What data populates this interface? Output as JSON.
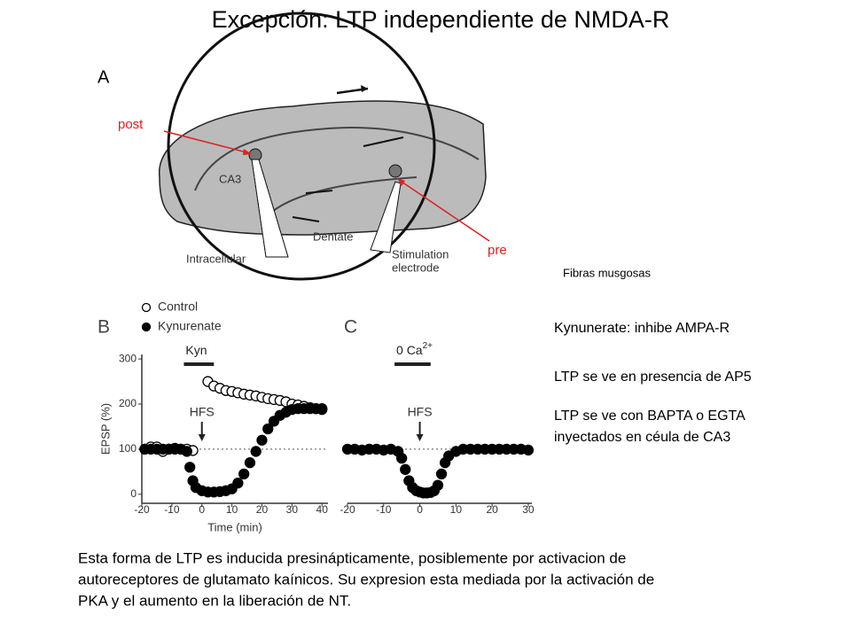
{
  "title": "Excepción: LTP independiente de NMDA-R",
  "diagram": {
    "panel": "A",
    "post": "post",
    "pre": "pre",
    "ca3": "CA3",
    "dentate": "Dentate",
    "intracellular": "Intracellular",
    "stimulation": [
      "Stimulation",
      "electrode"
    ]
  },
  "notes": {
    "fibras": "Fibras musgosas",
    "kynurenate": "Kynunerate: inhibe AMPA-R",
    "ap5": "LTP se ve en presencia de AP5",
    "bapta": [
      "LTP se ve con BAPTA o EGTA",
      "inyectados en céula de CA3"
    ]
  },
  "caption": [
    "Esta forma de LTP es inducida presinápticamente, posiblemente por activacion de",
    "autoreceptores de glutamato kaínicos. Su expresion esta mediada por la activación de",
    "PKA y el aumento en la liberación de NT."
  ],
  "chart_data": [
    {
      "type": "scatter",
      "panel": "B",
      "ylabel": "EPSP (%)",
      "xlabel": "Time (min)",
      "xlim": [
        -20,
        42
      ],
      "ylim": [
        -20,
        310
      ],
      "xticks": [
        -20,
        -10,
        0,
        10,
        20,
        30,
        40
      ],
      "yticks": [
        0,
        100,
        200,
        300
      ],
      "yaxis": true,
      "reference_line": 100,
      "annotations": [
        {
          "text": "Kyn",
          "x": [
            -6,
            4
          ]
        },
        {
          "text": "HFS",
          "x": 0
        }
      ],
      "series": [
        {
          "name": "Control",
          "marker": "open",
          "color": "#000000",
          "x": [
            -19,
            -17,
            -15,
            -13,
            -11,
            -9,
            -7,
            -5,
            -3,
            2,
            4,
            6,
            8,
            10,
            12,
            14,
            16,
            18,
            20,
            22,
            24,
            26,
            28,
            30,
            32,
            34,
            36,
            38,
            40
          ],
          "values": [
            100,
            105,
            105,
            95,
            100,
            102,
            100,
            100,
            97,
            250,
            240,
            235,
            230,
            228,
            225,
            222,
            220,
            218,
            215,
            212,
            210,
            208,
            205,
            200,
            198,
            195,
            192,
            190,
            188
          ]
        },
        {
          "name": "Kynurenate",
          "marker": "filled",
          "color": "#000000",
          "x": [
            -19,
            -17,
            -15,
            -13,
            -11,
            -9,
            -7,
            -5,
            -4,
            -3,
            -2,
            0,
            2,
            4,
            6,
            8,
            10,
            12,
            14,
            16,
            18,
            20,
            22,
            24,
            26,
            28,
            30,
            32,
            34,
            36,
            38,
            40
          ],
          "values": [
            100,
            100,
            100,
            100,
            100,
            100,
            100,
            95,
            60,
            30,
            15,
            8,
            5,
            5,
            6,
            8,
            12,
            25,
            45,
            70,
            95,
            120,
            145,
            162,
            175,
            182,
            188,
            190,
            190,
            190,
            190,
            190
          ]
        }
      ]
    },
    {
      "type": "scatter",
      "panel": "C",
      "xlim": [
        -20,
        31
      ],
      "ylim": [
        -20,
        310
      ],
      "xticks": [
        -20,
        -10,
        0,
        10,
        20,
        30
      ],
      "yaxis": false,
      "reference_line": 100,
      "annotations": [
        {
          "text": "0 Ca",
          "sup": "2+",
          "x": [
            -7,
            3
          ]
        },
        {
          "text": "HFS",
          "x": 0
        }
      ],
      "series": [
        {
          "marker": "filled",
          "color": "#000000",
          "x": [
            -20,
            -18,
            -16,
            -14,
            -12,
            -10,
            -8,
            -6,
            -5,
            -4,
            -3,
            -2,
            -1,
            0,
            1,
            2,
            3,
            4,
            5,
            6,
            7,
            8,
            10,
            12,
            14,
            16,
            18,
            20,
            22,
            24,
            26,
            28,
            30
          ],
          "values": [
            100,
            100,
            98,
            100,
            100,
            98,
            100,
            95,
            80,
            55,
            30,
            15,
            8,
            5,
            3,
            3,
            4,
            8,
            20,
            45,
            70,
            85,
            95,
            100,
            100,
            100,
            100,
            100,
            100,
            100,
            100,
            100,
            98
          ]
        }
      ]
    }
  ]
}
